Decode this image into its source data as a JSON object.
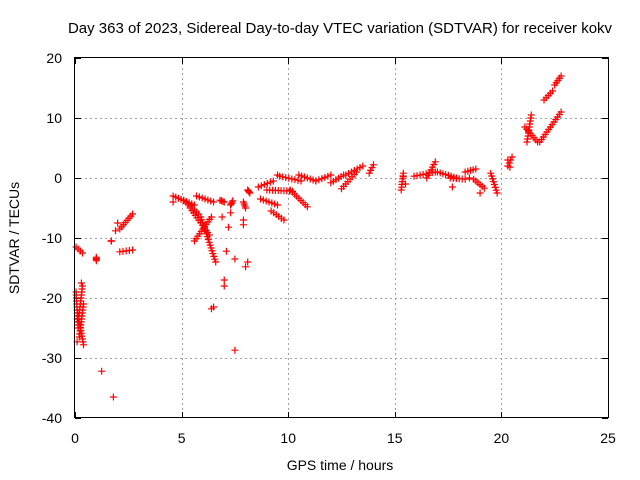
{
  "chart_data": {
    "type": "scatter",
    "title": "Day 363 of 2023, Sidereal Day-to-day VTEC variation (SDTVAR) for receiver kokv",
    "xlabel": "GPS time / hours",
    "ylabel": "SDTVAR / TECUs",
    "xlim": [
      0,
      25
    ],
    "ylim": [
      -40,
      20
    ],
    "xticks": [
      "0",
      "5",
      "10",
      "15",
      "20",
      "25"
    ],
    "yticks": [
      "20",
      "10",
      "0",
      "-10",
      "-20",
      "-30",
      "-40"
    ],
    "grid": true,
    "marker": "+",
    "color": "#ff0000",
    "series": [
      {
        "name": "SDTVAR",
        "segments": [
          [
            0.05,
            -11.5,
            0.35,
            -12.5
          ],
          [
            0.05,
            -19.0,
            0.15,
            -25.0
          ],
          [
            0.1,
            -22.0,
            0.4,
            -27.8
          ],
          [
            0.15,
            -24.0,
            0.35,
            -18.0
          ],
          [
            0.2,
            -26.5,
            0.4,
            -21.0
          ],
          [
            1.0,
            -13.8,
            1.0,
            -13.2
          ],
          [
            1.7,
            -10.5,
            1.7,
            -10.5
          ],
          [
            2.1,
            -8.5,
            2.7,
            -6.0
          ],
          [
            2.1,
            -12.3,
            2.7,
            -12.0
          ],
          [
            4.6,
            -3.0,
            5.6,
            -4.5
          ],
          [
            5.1,
            -3.7,
            5.8,
            -6.0
          ],
          [
            5.4,
            -5.0,
            6.3,
            -9.5
          ],
          [
            5.6,
            -10.5,
            6.4,
            -6.5
          ],
          [
            5.7,
            -3.0,
            6.5,
            -4.0
          ],
          [
            5.9,
            -6.5,
            6.6,
            -14.0
          ],
          [
            6.8,
            -3.7,
            7.0,
            -4.0
          ],
          [
            7.3,
            -4.5,
            7.4,
            -3.8
          ],
          [
            7.9,
            -4.0,
            8.0,
            -5.0
          ],
          [
            8.1,
            -2.0,
            8.2,
            -2.5
          ],
          [
            8.6,
            -1.5,
            9.3,
            -0.5
          ],
          [
            8.7,
            -3.5,
            9.5,
            -4.5
          ],
          [
            9.0,
            -2.0,
            10.2,
            -2.2
          ],
          [
            9.2,
            -5.5,
            9.8,
            -7.0
          ],
          [
            9.6,
            0.3,
            10.6,
            -0.5
          ],
          [
            10.1,
            -2.0,
            10.9,
            -4.8
          ],
          [
            10.5,
            0.5,
            11.3,
            -0.5
          ],
          [
            11.3,
            -0.5,
            12.0,
            0.5
          ],
          [
            12.0,
            -0.8,
            12.6,
            0.5
          ],
          [
            12.5,
            -1.8,
            13.2,
            1.0
          ],
          [
            12.7,
            0.5,
            13.5,
            2.0
          ],
          [
            13.8,
            0.8,
            14.0,
            2.2
          ],
          [
            15.3,
            -2.0,
            15.4,
            0.8
          ],
          [
            15.9,
            0.3,
            16.9,
            1.0
          ],
          [
            16.5,
            0.0,
            16.9,
            2.7
          ],
          [
            17.0,
            1.0,
            17.9,
            0.0
          ],
          [
            17.6,
            0.0,
            18.3,
            -0.2
          ],
          [
            18.3,
            1.0,
            18.8,
            1.5
          ],
          [
            18.7,
            -0.2,
            19.2,
            -1.7
          ],
          [
            19.5,
            0.8,
            19.8,
            -2.5
          ],
          [
            20.3,
            2.0,
            20.5,
            3.5
          ],
          [
            21.1,
            8.5,
            21.7,
            6.0
          ],
          [
            21.2,
            6.0,
            21.4,
            10.5
          ],
          [
            21.8,
            6.0,
            22.8,
            11.0
          ],
          [
            22.0,
            13.0,
            22.4,
            14.5
          ],
          [
            22.5,
            15.5,
            22.8,
            17.0
          ]
        ],
        "points": [
          [
            1.25,
            -32.2
          ],
          [
            1.8,
            -36.5
          ],
          [
            7.5,
            -28.7
          ],
          [
            6.5,
            -21.5
          ],
          [
            6.4,
            -21.8
          ],
          [
            7.0,
            -17.0
          ],
          [
            7.0,
            -18.0
          ],
          [
            7.1,
            -12.2
          ],
          [
            7.5,
            -13.5
          ],
          [
            8.1,
            -14.0
          ],
          [
            8.0,
            -14.8
          ],
          [
            6.9,
            -6.5
          ],
          [
            7.3,
            -5.8
          ],
          [
            7.2,
            -8.2
          ],
          [
            7.9,
            -7.0
          ],
          [
            7.9,
            -7.8
          ],
          [
            4.6,
            -4.0
          ],
          [
            2.0,
            -7.5
          ],
          [
            1.9,
            -8.8
          ],
          [
            9.5,
            0.5
          ],
          [
            15.4,
            0.2
          ],
          [
            15.5,
            -1.0
          ],
          [
            17.7,
            -1.5
          ],
          [
            19.0,
            -2.5
          ],
          [
            18.5,
            0.0
          ],
          [
            20.4,
            1.8
          ],
          [
            20.3,
            3.0
          ],
          [
            0.1,
            -27.3
          ],
          [
            0.1,
            -23.5
          ],
          [
            0.3,
            -17.5
          ]
        ]
      }
    ]
  }
}
